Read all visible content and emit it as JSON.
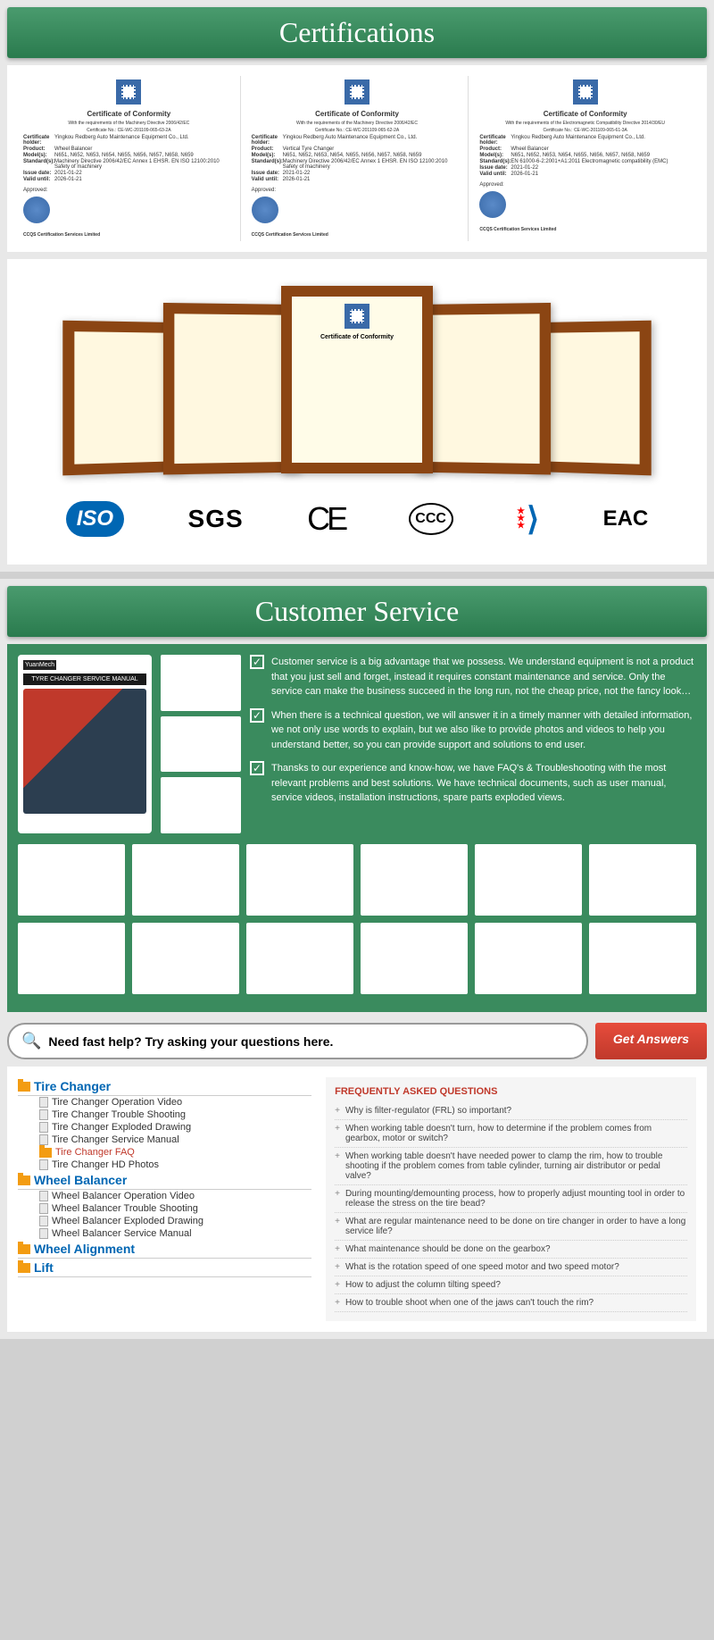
{
  "sections": {
    "cert_header": "Certifications",
    "service_header": "Customer Service"
  },
  "certificates": [
    {
      "title": "Certificate of Conformity",
      "directive": "With the requirements of the Machinery Directive 2006/42/EC",
      "cert_no": "Certificate No.: CE-WC-201109-065-63-2A",
      "holder_label": "Certificate holder:",
      "holder": "Yingkou Redberg Auto Maintenance Equipment Co., Ltd.",
      "product_label": "Product:",
      "product": "Wheel Balancer",
      "model_label": "Model(s):",
      "model": "N651, N652, N653, N654, N655, N656, N657, N658, N659",
      "standard_label": "Standard(s):",
      "standard": "Machinery Directive 2006/42/EC Annex 1 EHSR. EN ISO 12100:2010 Safety of machinery",
      "issue_label": "Issue date:",
      "issue": "2021-01-22",
      "valid_label": "Valid until:",
      "valid": "2026-01-21",
      "footer": "CCQS Certification Services Limited"
    },
    {
      "title": "Certificate of Conformity",
      "directive": "With the requirements of the Machinery Directive 2006/42/EC",
      "cert_no": "Certificate No.: CE-WC-201109-065-62-2A",
      "holder_label": "Certificate holder:",
      "holder": "Yingkou Redberg Auto Maintenance Equipment Co., Ltd.",
      "product_label": "Product:",
      "product": "Vertical Tyre Changer",
      "model_label": "Model(s):",
      "model": "N651, N652, N653, N654, N655, N656, N657, N658, N659",
      "standard_label": "Standard(s):",
      "standard": "Machinery Directive 2006/42/EC Annex 1 EHSR. EN ISO 12100:2010 Safety of machinery",
      "issue_label": "Issue date:",
      "issue": "2021-01-22",
      "valid_label": "Valid until:",
      "valid": "2026-01-21",
      "footer": "CCQS Certification Services Limited"
    },
    {
      "title": "Certificate of Conformity",
      "directive": "With the requirements of the Electromagnetic Compatibility Directive 2014/30/EU",
      "cert_no": "Certificate No.: CE-WC-201109-065-61-3A",
      "holder_label": "Certificate holder:",
      "holder": "Yingkou Redberg Auto Maintenance Equipment Co., Ltd.",
      "product_label": "Product:",
      "product": "Wheel Balancer",
      "model_label": "Model(s):",
      "model": "N651, N652, N653, N654, N655, N656, N657, N658, N659",
      "standard_label": "Standard(s):",
      "standard": "EN 61000-6-2:2001+A1:2011 Electromagnetic compatibility (EMC)",
      "issue_label": "Issue date:",
      "issue": "2021-01-22",
      "valid_label": "Valid until:",
      "valid": "2026-01-21",
      "footer": "CCQS Certification Services Limited"
    }
  ],
  "logos": {
    "iso": "ISO",
    "sgs": "SGS",
    "ce": "CE",
    "ccc": "CCC",
    "eac": "EAC"
  },
  "service": {
    "manual_brand": "YuanMech",
    "manual_title": "TYRE CHANGER SERVICE MANUAL",
    "points": [
      "Customer service is a big advantage that we possess. We understand equipment is not a product that you just sell and forget, instead it requires constant maintenance and service. Only the service can make the business succeed in the long run, not the cheap price, not the fancy look…",
      "When there is a technical question, we will answer it in a timely manner with detailed information, we not only use words to explain, but we also like to provide photos and videos to help you understand better, so you can provide support and solutions to end user.",
      "Thansks to our experience and know-how, we have FAQ's & Troubleshooting with the most relevant problems and best solutions. We have technical documents, such as user manual, service videos, installation instructions, spare parts exploded views."
    ],
    "help_placeholder": "Need fast help? Try asking your questions here.",
    "help_button": "Get Answers"
  },
  "tree": [
    {
      "label": "Tire Changer",
      "items": [
        "Tire Changer Operation Video",
        "Tire Changer Trouble Shooting",
        "Tire Changer Exploded Drawing",
        "Tire Changer Service Manual",
        {
          "label": "Tire Changer FAQ",
          "active": true
        },
        "Tire Changer HD Photos"
      ]
    },
    {
      "label": "Wheel Balancer",
      "items": [
        "Wheel Balancer Operation Video",
        "Wheel Balancer Trouble Shooting",
        "Wheel Balancer Exploded Drawing",
        "Wheel Balancer Service Manual"
      ]
    },
    {
      "label": "Wheel Alignment",
      "items": []
    },
    {
      "label": "Lift",
      "items": []
    }
  ],
  "faq": {
    "title": "FREQUENTLY ASKED QUESTIONS",
    "items": [
      "Why is filter-regulator (FRL) so important?",
      "When working table doesn't turn, how to determine if the problem comes from gearbox, motor or switch?",
      "When working table doesn't have needed power to clamp the rim, how to trouble shooting if the problem comes from table cylinder, turning air distributor or pedal valve?",
      "During mounting/demounting process, how to properly adjust mounting tool in order to release the stress on the tire bead?",
      "What are regular maintenance need to be done on tire changer in order to have a long service life?",
      "What maintenance should be done on the gearbox?",
      "What is the rotation speed of one speed motor and two speed motor?",
      "How to adjust the column tilting speed?",
      "How to trouble shoot when one of the jaws can't touch the rim?"
    ]
  }
}
